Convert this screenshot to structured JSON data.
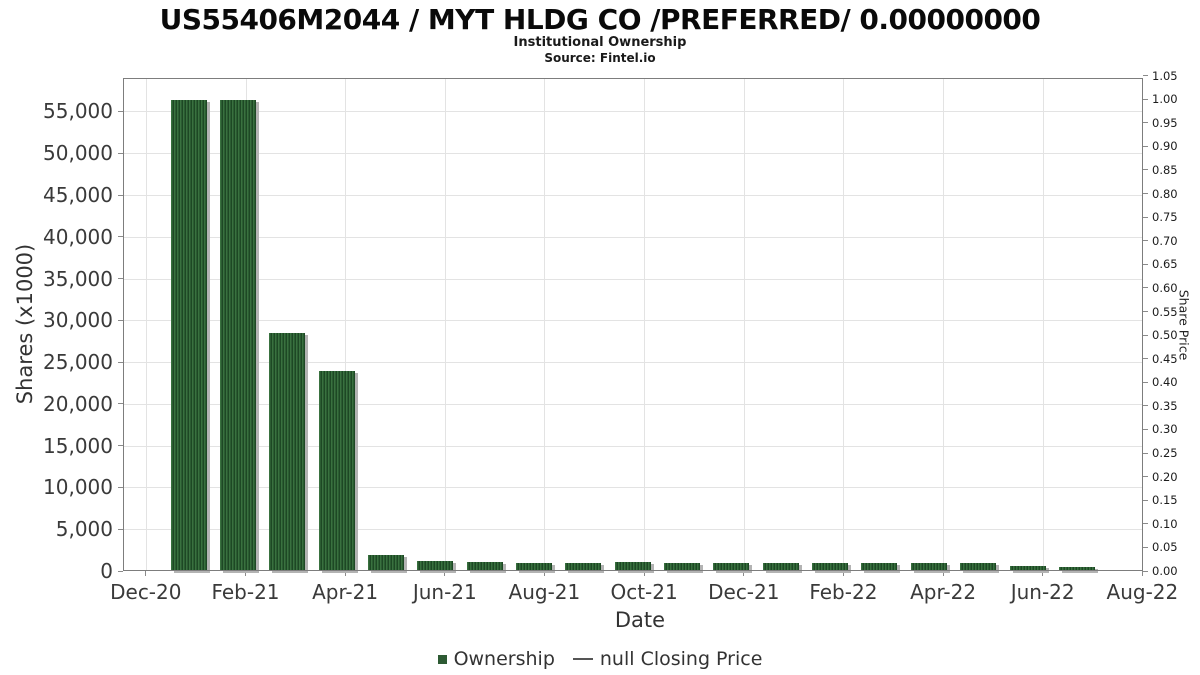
{
  "title": "US55406M2044 / MYT HLDG CO /PREFERRED/ 0.00000000",
  "subtitle": "Institutional Ownership",
  "source": "Source: Fintel.io",
  "chart_data": {
    "type": "bar",
    "title": "US55406M2044 / MYT HLDG CO /PREFERRED/ 0.00000000",
    "subtitle": "Institutional Ownership",
    "source": "Source: Fintel.io",
    "xlabel": "Date",
    "ylabel": "Shares (x1000)",
    "ylabel_right": "Share Price",
    "categories": [
      "Dec-20",
      "Jan-21",
      "Feb-21",
      "Mar-21",
      "Apr-21",
      "May-21",
      "Jun-21",
      "Jul-21",
      "Aug-21",
      "Sep-21",
      "Oct-21",
      "Nov-21",
      "Dec-21",
      "Jan-22",
      "Feb-22",
      "Mar-22",
      "Apr-22",
      "May-22",
      "Jun-22"
    ],
    "series": [
      {
        "name": "Ownership",
        "values": [
          56400,
          56400,
          28500,
          23900,
          1900,
          1200,
          1100,
          1000,
          950,
          1050,
          950,
          950,
          1000,
          1000,
          1000,
          1000,
          1000,
          550,
          450
        ]
      }
    ],
    "x_tick_labels": [
      "Dec-20",
      "Feb-21",
      "Apr-21",
      "Jun-21",
      "Aug-21",
      "Oct-21",
      "Dec-21",
      "Feb-22",
      "Apr-22",
      "Jun-22",
      "Aug-22"
    ],
    "y_left_ticks": [
      0,
      5000,
      10000,
      15000,
      20000,
      25000,
      30000,
      35000,
      40000,
      45000,
      50000,
      55000
    ],
    "y_left_lim": [
      0,
      59000
    ],
    "y_right_ticks": [
      "0.00",
      "0.05",
      "0.10",
      "0.15",
      "0.20",
      "0.25",
      "0.30",
      "0.35",
      "0.40",
      "0.45",
      "0.50",
      "0.55",
      "0.60",
      "0.65",
      "0.70",
      "0.75",
      "0.80",
      "0.85",
      "0.90",
      "0.95",
      "1.00",
      "1.05"
    ],
    "y_right_lim": [
      0,
      1.05
    ],
    "grid": true,
    "legend_position": "bottom",
    "bar_color": "#2d5a33",
    "bar_stripe_light": "#39713f",
    "bar_stripe_dark": "#1d4824",
    "bar_shadow_color": "#b3b3b3",
    "grid_color": "#e3e3e3",
    "frame_color": "#7d7d7d"
  },
  "legend": {
    "items": [
      {
        "label": "Ownership",
        "marker": "square"
      },
      {
        "label": "null Closing Price",
        "marker": "line"
      }
    ]
  }
}
